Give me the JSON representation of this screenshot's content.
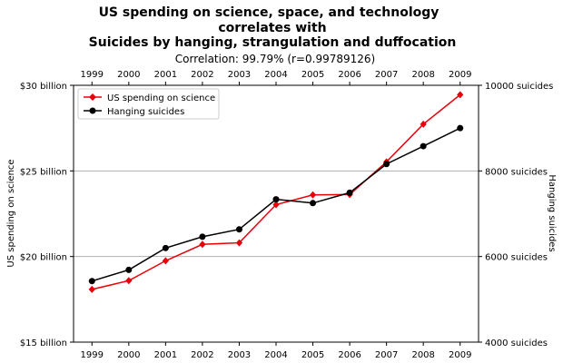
{
  "chart_data": {
    "type": "line",
    "title_lines": [
      "US spending on science, space, and technology",
      "correlates with",
      "Suicides by hanging, strangulation and duffocation"
    ],
    "subtitle": "Correlation: 99.79% (r=0.99789126)",
    "x": [
      "1999",
      "2000",
      "2001",
      "2002",
      "2003",
      "2004",
      "2005",
      "2006",
      "2007",
      "2008",
      "2009"
    ],
    "xlim": [
      1998.5,
      2009.5
    ],
    "left_axis": {
      "label": "US spending on science",
      "ylim": [
        15,
        30
      ],
      "ticks": [
        15,
        20,
        25,
        30
      ],
      "tick_labels": [
        "$15 billion",
        "$20 billion",
        "$25 billion",
        "$30 billion"
      ]
    },
    "right_axis": {
      "label": "Hanging suicides",
      "ylim": [
        4000,
        10000
      ],
      "ticks": [
        4000,
        6000,
        8000,
        10000
      ],
      "tick_labels": [
        "4000 suicides",
        "6000 suicides",
        "8000 suicides",
        "10000 suicides"
      ]
    },
    "gridlines": [
      20,
      25
    ],
    "series": [
      {
        "name": "US spending on science",
        "axis": "left",
        "color": "#e8000b",
        "marker": "diamond",
        "values": [
          18.08,
          18.59,
          19.75,
          20.71,
          20.8,
          23.03,
          23.6,
          23.62,
          25.53,
          27.73,
          29.45
        ]
      },
      {
        "name": "Hanging suicides",
        "axis": "right",
        "color": "#000000",
        "marker": "circle",
        "values": [
          5427,
          5688,
          6198,
          6462,
          6635,
          7336,
          7248,
          7491,
          8161,
          8578,
          9000
        ]
      }
    ],
    "legend_placement": "upper-left"
  }
}
